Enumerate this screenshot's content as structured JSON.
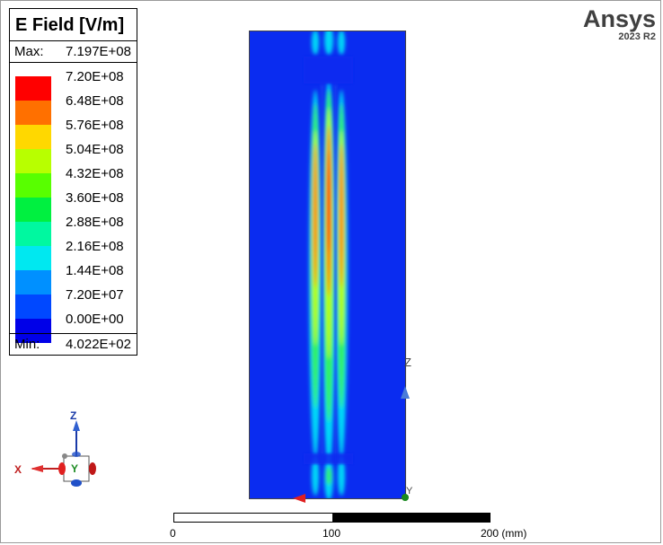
{
  "legend": {
    "title": "E Field [V/m]",
    "max_label": "Max:",
    "max_value": "7.197E+08",
    "min_label": "Min:",
    "min_value": "4.022E+02",
    "ticks": [
      "7.20E+08",
      "6.48E+08",
      "5.76E+08",
      "5.04E+08",
      "4.32E+08",
      "3.60E+08",
      "2.88E+08",
      "2.16E+08",
      "1.44E+08",
      "7.20E+07",
      "0.00E+00"
    ],
    "band_colors": [
      "#ff0000",
      "#ff7000",
      "#ffd800",
      "#b8ff00",
      "#58ff00",
      "#00f040",
      "#00f8a0",
      "#00e8f0",
      "#0090ff",
      "#0048ff",
      "#0000e8"
    ]
  },
  "brand": {
    "name": "Ansys",
    "version": "2023 R2"
  },
  "plot": {
    "background_color": "#0a2cf0"
  },
  "axes": {
    "z_label": "Z",
    "y_label": "Y",
    "x_label": "X"
  },
  "triad": {
    "z": "Z",
    "x": "X",
    "y": "Y"
  },
  "scale": {
    "labels": [
      "0",
      "100",
      "200 (mm)"
    ]
  }
}
